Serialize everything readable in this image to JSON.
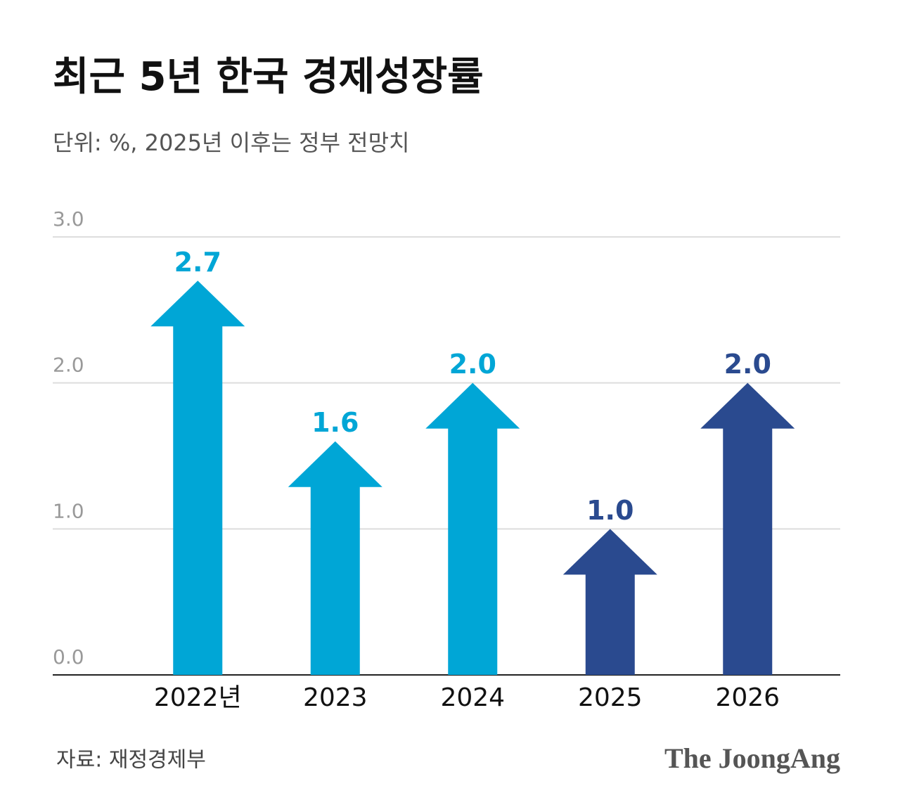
{
  "chart_data": {
    "type": "arrow-bar",
    "title": "최근 5년 한국 경제성장률",
    "subtitle": "단위: %, 2025년 이후는 정부 전망치",
    "categories": [
      "2022년",
      "2023",
      "2024",
      "2025",
      "2026"
    ],
    "values": [
      2.7,
      1.6,
      2.0,
      1.0,
      2.0
    ],
    "value_labels": [
      "2.7",
      "1.6",
      "2.0",
      "1.0",
      "2.0"
    ],
    "colors": [
      "#00a6d6",
      "#00a6d6",
      "#00a6d6",
      "#2a4a8f",
      "#2a4a8f"
    ],
    "ylim": [
      0,
      3
    ],
    "yticks": [
      {
        "value": 0,
        "label": "0.0"
      },
      {
        "value": 1,
        "label": "1.0"
      },
      {
        "value": 2,
        "label": "2.0"
      },
      {
        "value": 3,
        "label": "3.0"
      }
    ],
    "grid": true,
    "source": "자료: 재정경제부",
    "brand": "The JoongAng"
  }
}
